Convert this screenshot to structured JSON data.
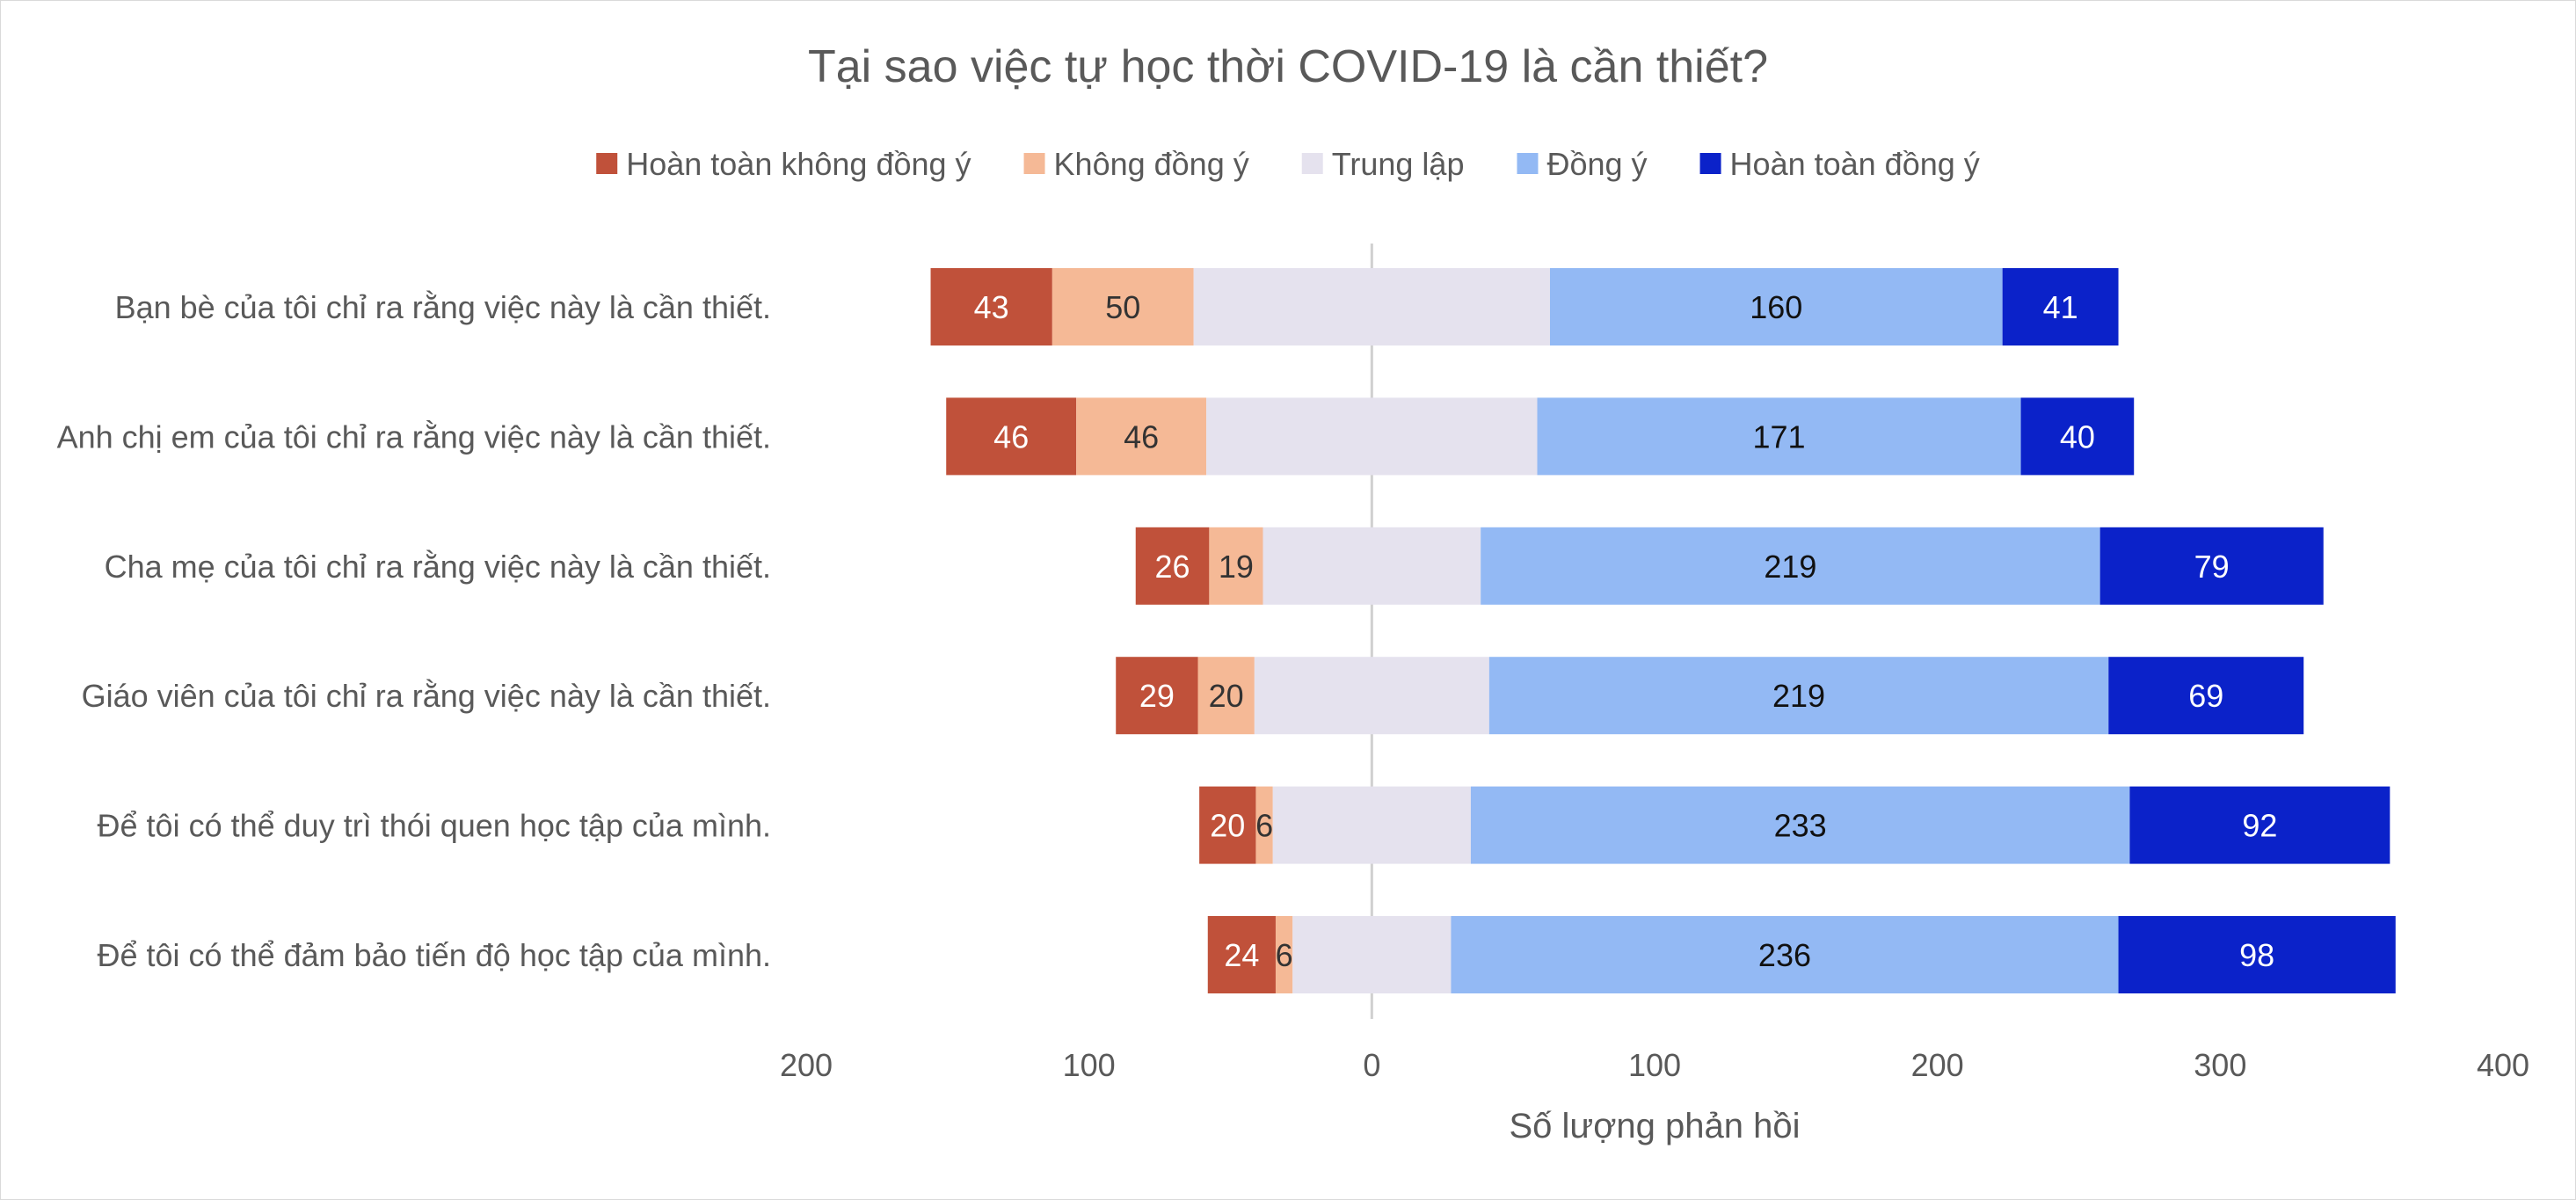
{
  "chart_data": {
    "type": "bar",
    "orientation": "horizontal",
    "stacking": "diverging",
    "title": "Tại sao việc tự học thời COVID-19 là cần thiết?",
    "xlabel": "Số lượng phản hồi",
    "ylabel": "",
    "xlim": [
      -200,
      400
    ],
    "xticks": [
      -200,
      -100,
      0,
      100,
      200,
      300,
      400
    ],
    "xtick_labels": [
      "200",
      "100",
      "0",
      "100",
      "200",
      "300",
      "400"
    ],
    "grid": false,
    "legend_position": "top",
    "categories": [
      "Bạn bè của tôi chỉ ra rằng việc này là cần thiết.",
      "Anh chị em của tôi chỉ ra rằng việc này là cần thiết.",
      "Cha mẹ của tôi chỉ ra rằng việc này là cần thiết.",
      "Giáo viên của tôi chỉ ra rằng việc này là cần thiết.",
      "Để tôi có thể duy trì thói quen học tập của mình.",
      "Để tôi có thể đảm bảo tiến độ học tập của mình."
    ],
    "series": [
      {
        "name": "Hoàn toàn không đồng ý",
        "color": "#c0513a",
        "label_color": "#ffffff",
        "show_labels": true,
        "values": [
          43,
          46,
          26,
          29,
          20,
          24
        ]
      },
      {
        "name": "Không đồng ý",
        "color": "#f5b996",
        "label_color": "#333333",
        "show_labels": true,
        "values": [
          50,
          46,
          19,
          20,
          6,
          6
        ]
      },
      {
        "name": "Trung lập",
        "color": "#e5e2ee",
        "label_color": "#333333",
        "show_labels": false,
        "values": [
          126,
          117,
          77,
          83,
          70,
          56
        ]
      },
      {
        "name": "Đồng ý",
        "color": "#93b9f4",
        "label_color": "#111111",
        "show_labels": true,
        "values": [
          160,
          171,
          219,
          219,
          233,
          236
        ]
      },
      {
        "name": "Hoàn toàn đồng ý",
        "color": "#0b22c9",
        "label_color": "#ffffff",
        "show_labels": true,
        "values": [
          41,
          40,
          79,
          69,
          92,
          98
        ]
      }
    ]
  }
}
